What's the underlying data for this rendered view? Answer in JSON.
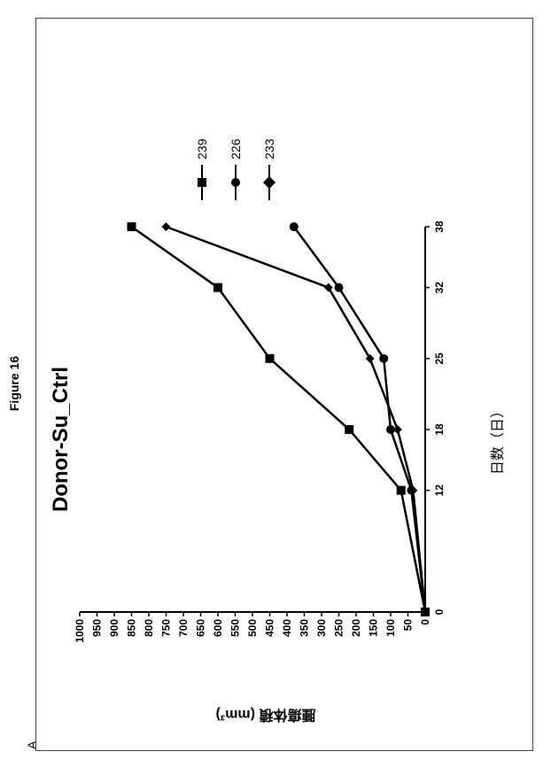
{
  "figure_label": "Figure 16",
  "panel_label": "A",
  "chart": {
    "type": "line",
    "title": "Donor-Su_Ctrl",
    "xlabel": "日数（日）",
    "ylabel": "腫瘍体積 (mm³)",
    "xlim": [
      0,
      38
    ],
    "ylim": [
      0,
      1000
    ],
    "xticks": [
      0,
      12,
      18,
      25,
      32,
      38
    ],
    "yticks": [
      0,
      50,
      100,
      150,
      200,
      250,
      300,
      350,
      400,
      450,
      500,
      550,
      600,
      650,
      700,
      750,
      800,
      850,
      900,
      950,
      1000
    ],
    "line_color": "#000000",
    "marker_color": "#000000",
    "background_color": "#ffffff",
    "axis_color": "#000000",
    "title_fontsize": 24,
    "label_fontsize": 16,
    "tick_fontsize": 12,
    "line_width": 2.5,
    "marker_size": 10,
    "series": [
      {
        "name": "239",
        "marker": "square",
        "x": [
          0,
          12,
          18,
          25,
          32,
          38
        ],
        "y": [
          0,
          70,
          220,
          450,
          600,
          850
        ]
      },
      {
        "name": "226",
        "marker": "circle",
        "x": [
          0,
          12,
          18,
          25,
          32,
          38
        ],
        "y": [
          0,
          40,
          100,
          120,
          250,
          380
        ]
      },
      {
        "name": "233",
        "marker": "diamond",
        "x": [
          0,
          12,
          18,
          25,
          32,
          38
        ],
        "y": [
          0,
          35,
          80,
          160,
          280,
          750
        ]
      }
    ],
    "legend": {
      "items": [
        {
          "label": "239",
          "marker": "square"
        },
        {
          "label": "226",
          "marker": "circle"
        },
        {
          "label": "233",
          "marker": "diamond"
        }
      ]
    }
  }
}
